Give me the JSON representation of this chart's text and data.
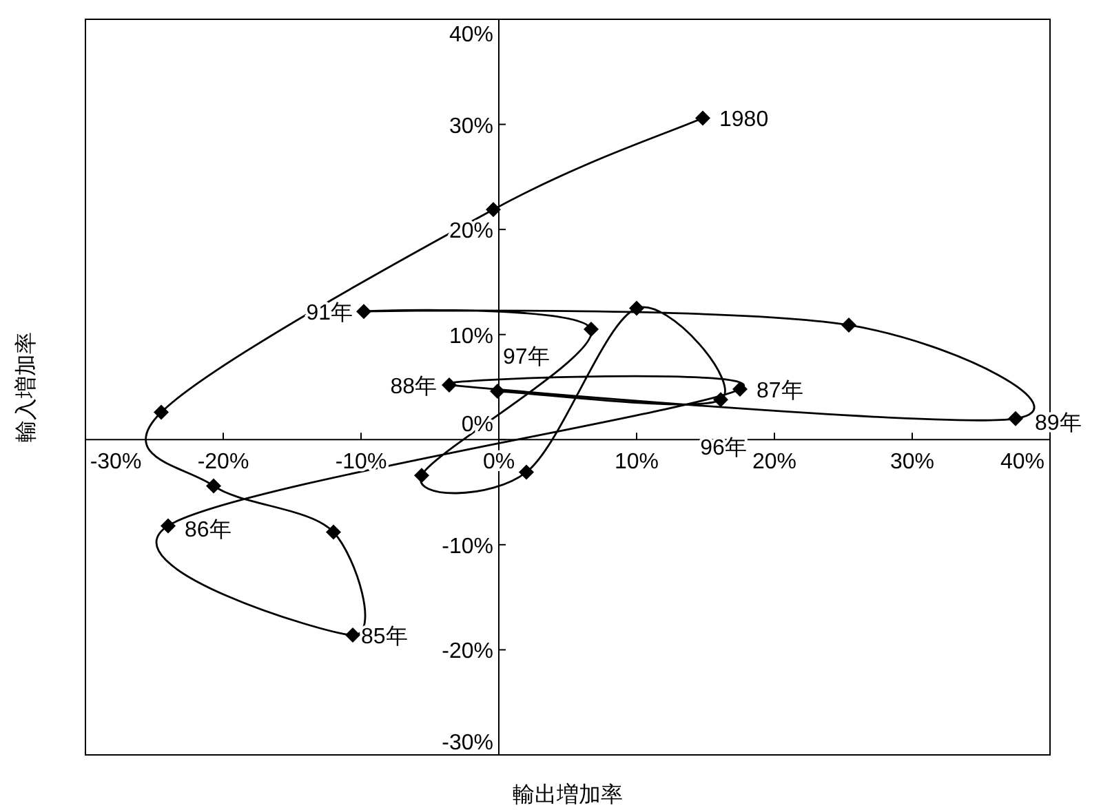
{
  "chart_data": {
    "type": "line",
    "xlabel": "輸出増加率",
    "ylabel": "輸入増加率",
    "marker": "diamond",
    "line_style": "solid",
    "grid": false,
    "xlim": [
      -30,
      40
    ],
    "ylim": [
      -30,
      40
    ],
    "xticks": [
      {
        "value": -30,
        "label": "-30%"
      },
      {
        "value": -20,
        "label": "-20%"
      },
      {
        "value": -10,
        "label": "-10%"
      },
      {
        "value": 0,
        "label": "0%"
      },
      {
        "value": 10,
        "label": "10%"
      },
      {
        "value": 20,
        "label": "20%"
      },
      {
        "value": 30,
        "label": "30%"
      },
      {
        "value": 40,
        "label": "40%"
      }
    ],
    "yticks": [
      {
        "value": -30,
        "label": "-30%"
      },
      {
        "value": -20,
        "label": "-20%"
      },
      {
        "value": -10,
        "label": "-10%"
      },
      {
        "value": 0,
        "label": "0%"
      },
      {
        "value": 10,
        "label": "10%"
      },
      {
        "value": 20,
        "label": "20%"
      },
      {
        "value": 30,
        "label": "30%"
      },
      {
        "value": 40,
        "label": "40%"
      }
    ],
    "series": [
      {
        "color": "#000000",
        "x": [
          14.8,
          -0.4,
          -24.5,
          -20.7,
          -12.0,
          -10.6,
          -24.0,
          17.5,
          -3.6,
          37.5,
          25.4,
          -9.8,
          6.7,
          -5.6,
          2.0,
          10.0,
          16.1,
          -0.1
        ],
        "values": [
          30.6,
          21.9,
          2.6,
          -4.4,
          -8.8,
          -18.6,
          -8.2,
          4.8,
          5.2,
          2.0,
          10.9,
          12.2,
          10.5,
          -3.4,
          -3.1,
          12.5,
          3.8,
          4.6
        ]
      }
    ],
    "annotations": [
      {
        "text": "1980",
        "x": 14.8,
        "y": 30.6
      },
      {
        "text": "85年",
        "x": -10.6,
        "y": -18.6
      },
      {
        "text": "86年",
        "x": -24.0,
        "y": -8.2
      },
      {
        "text": "87年",
        "x": 17.5,
        "y": 4.8
      },
      {
        "text": "88年",
        "x": -3.6,
        "y": 5.2
      },
      {
        "text": "89年",
        "x": 37.5,
        "y": 2.0
      },
      {
        "text": "91年",
        "x": -9.8,
        "y": 12.2
      },
      {
        "text": "96年",
        "x": 16.1,
        "y": 3.8
      },
      {
        "text": "97年",
        "x": -0.1,
        "y": 4.6
      }
    ]
  }
}
